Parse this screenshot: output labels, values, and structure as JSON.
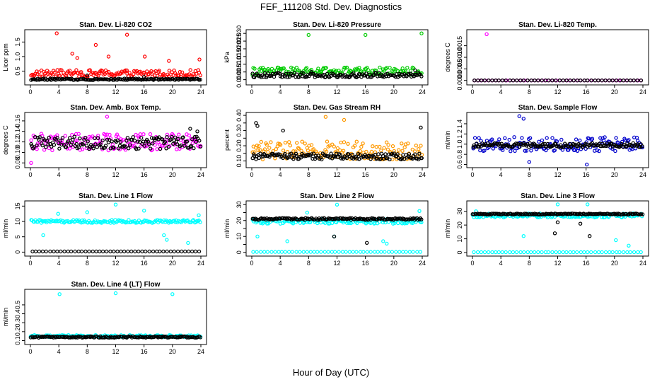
{
  "figure": {
    "title": "FEF_111208  Std. Dev. Diagnostics",
    "x_axis_title": "Hour of Day (UTC)"
  },
  "chart_data": [
    {
      "type": "scatter",
      "title": "Stan. Dev. Li-820 CO2",
      "ylabel": "Licor ppm",
      "xlim": [
        0,
        24
      ],
      "ylim": [
        0.1,
        1.85
      ],
      "xticks": [
        0,
        4,
        8,
        12,
        16,
        20,
        24
      ],
      "yticks": [
        0.5,
        1.0,
        1.5
      ],
      "ytick_labels": [
        "0.5",
        "1.0",
        "1.5"
      ],
      "color": "#ff0000",
      "series": [
        {
          "color": "#ff0000",
          "base": 0.42,
          "spread": 0.12,
          "outliers": [
            [
              3.7,
              1.8
            ],
            [
              13.6,
              1.75
            ],
            [
              9.2,
              1.4
            ],
            [
              5.9,
              1.1
            ],
            [
              16.1,
              1.0
            ],
            [
              6.6,
              0.95
            ],
            [
              11.0,
              1.0
            ],
            [
              23.8,
              0.9
            ],
            [
              19.5,
              0.85
            ]
          ]
        },
        {
          "color": "#000000",
          "base": 0.22,
          "spread": 0.025,
          "outliers": [
            [
              8.0,
              0.35
            ],
            [
              16.0,
              0.3
            ]
          ]
        }
      ]
    },
    {
      "type": "scatter",
      "title": "Stan. Dev. Li-820 Pressure",
      "ylabel": "kPa",
      "xlim": [
        0,
        24
      ],
      "ylim": [
        -0.002,
        0.031
      ],
      "xticks": [
        0,
        4,
        8,
        12,
        16,
        20,
        24
      ],
      "yticks": [
        0.0,
        0.005,
        0.01,
        0.015,
        0.02,
        0.025,
        0.03
      ],
      "ytick_labels": [
        "0.000",
        "0.005",
        "0.010",
        "0.015",
        "0.020",
        "0.025",
        "0.030"
      ],
      "color": "#00cc00",
      "series": [
        {
          "color": "#00cc00",
          "base": 0.0055,
          "spread": 0.0025,
          "outliers": [
            [
              8.0,
              0.029
            ],
            [
              16.0,
              0.029
            ],
            [
              23.9,
              0.03
            ]
          ]
        },
        {
          "color": "#000000",
          "base": 0.003,
          "spread": 0.0015,
          "outliers": [
            [
              23.0,
              0.006
            ],
            [
              8.4,
              0.005
            ]
          ]
        }
      ]
    },
    {
      "type": "scatter",
      "title": "Stan. Dev. Li-820 Temp.",
      "ylabel": "degrees C",
      "xlim": [
        0,
        24
      ],
      "ylim": [
        -0.0001,
        0.0021
      ],
      "xticks": [
        0,
        4,
        8,
        12,
        16,
        20,
        24
      ],
      "yticks": [
        0.0,
        0.0005,
        0.001,
        0.0015
      ],
      "ytick_labels": [
        "0.0000",
        "0.0005",
        "0.0010",
        "0.0015"
      ],
      "color": "#ff00ff",
      "series": [
        {
          "color": "#ff00ff",
          "base": 0.0,
          "spread": 0.0,
          "outliers": [
            [
              2.0,
              0.002
            ]
          ]
        },
        {
          "color": "#000000",
          "base": 0.0,
          "spread": 0.0,
          "outliers": []
        }
      ]
    },
    {
      "type": "scatter",
      "title": "Stan. Dev. Amb. Box Temp.",
      "ylabel": "degrees C",
      "xlim": [
        0,
        24
      ],
      "ylim": [
        0.075,
        0.172
      ],
      "xticks": [
        0,
        4,
        8,
        12,
        16,
        20,
        24
      ],
      "yticks": [
        0.08,
        0.1,
        0.12,
        0.14,
        0.16
      ],
      "ytick_labels": [
        "0.08",
        "0.10",
        "0.12",
        "0.14",
        "0.16"
      ],
      "color": "#ff00ff",
      "series": [
        {
          "color": "#ff00ff",
          "base": 0.12,
          "spread": 0.016,
          "outliers": [
            [
              0.1,
              0.08
            ],
            [
              10.8,
              0.168
            ]
          ]
        },
        {
          "color": "#000000",
          "base": 0.118,
          "spread": 0.012,
          "outliers": [
            [
              23.5,
              0.14
            ],
            [
              22.5,
              0.145
            ]
          ]
        }
      ]
    },
    {
      "type": "scatter",
      "title": "Stan. Dev. Gas Stream RH",
      "ylabel": "percent",
      "xlim": [
        0,
        24
      ],
      "ylim": [
        0.07,
        0.405
      ],
      "xticks": [
        0,
        4,
        8,
        12,
        16,
        20,
        24
      ],
      "yticks": [
        0.1,
        0.15,
        0.2,
        0.25,
        0.3,
        0.35,
        0.4
      ],
      "ytick_labels": [
        "0.10",
        "",
        "0.20",
        "",
        "0.30",
        "",
        "0.40"
      ],
      "color": "#ff9900",
      "series": [
        {
          "color": "#ff9900",
          "base": 0.17,
          "spread": 0.06,
          "outliers": [
            [
              10.4,
              0.39
            ],
            [
              13.0,
              0.37
            ]
          ]
        },
        {
          "color": "#000000",
          "base": 0.13,
          "spread": 0.02,
          "outliers": [
            [
              0.6,
              0.35
            ],
            [
              0.8,
              0.33
            ],
            [
              4.4,
              0.3
            ],
            [
              23.8,
              0.32
            ]
          ]
        }
      ]
    },
    {
      "type": "scatter",
      "title": "Stan. Dev. Sample Flow",
      "ylabel": "ml/min",
      "xlim": [
        0,
        24
      ],
      "ylim": [
        0.58,
        1.58
      ],
      "xticks": [
        0,
        4,
        8,
        12,
        16,
        20,
        24
      ],
      "yticks": [
        0.6,
        0.8,
        1.0,
        1.2,
        1.4
      ],
      "ytick_labels": [
        "0.6",
        "0.8",
        "1.0",
        "1.2",
        "1.4"
      ],
      "color": "#0000cc",
      "series": [
        {
          "color": "#0000cc",
          "base": 1.0,
          "spread": 0.14,
          "outliers": [
            [
              6.6,
              1.55
            ],
            [
              7.2,
              1.5
            ],
            [
              16.1,
              0.6
            ],
            [
              8.0,
              0.65
            ]
          ]
        },
        {
          "color": "#000000",
          "base": 0.98,
          "spread": 0.04,
          "outliers": []
        }
      ]
    },
    {
      "type": "scatter",
      "title": "Stan. Dev. Line 1 Flow",
      "ylabel": "ml/min",
      "xlim": [
        0,
        24
      ],
      "ylim": [
        -0.6,
        16
      ],
      "xticks": [
        0,
        4,
        8,
        12,
        16,
        20,
        24
      ],
      "yticks": [
        0,
        5,
        10,
        15
      ],
      "ytick_labels": [
        "0",
        "5",
        "10",
        "15"
      ],
      "color": "#00ffff",
      "series": [
        {
          "color": "#00ffff",
          "base": 10.0,
          "spread": 0.5,
          "outliers": [
            [
              12.0,
              15.5
            ],
            [
              3.9,
              12.5
            ],
            [
              8.0,
              13.0
            ],
            [
              16.0,
              13.5
            ],
            [
              23.7,
              12.0
            ],
            [
              18.8,
              5.5
            ],
            [
              19.2,
              4.0
            ],
            [
              22.2,
              3.0
            ],
            [
              1.8,
              5.5
            ]
          ]
        },
        {
          "color": "#000000",
          "base": 0.2,
          "spread": 0.0,
          "outliers": []
        }
      ]
    },
    {
      "type": "scatter",
      "title": "Stan. Dev. Line 2 Flow",
      "ylabel": "ml/min",
      "xlim": [
        0,
        24
      ],
      "ylim": [
        -1,
        31
      ],
      "xticks": [
        0,
        4,
        8,
        12,
        16,
        20,
        24
      ],
      "yticks": [
        0,
        5,
        10,
        15,
        20,
        25,
        30
      ],
      "ytick_labels": [
        "0",
        "",
        "10",
        "",
        "20",
        "",
        "30"
      ],
      "color": "#00ffff",
      "series": [
        {
          "color": "#00ffff",
          "base": 19.5,
          "spread": 1.5,
          "outliers": [
            [
              12.0,
              30.0
            ],
            [
              7.8,
              25.0
            ],
            [
              23.6,
              26.0
            ],
            [
              18.5,
              7.0
            ],
            [
              19.0,
              5.5
            ],
            [
              0.8,
              10.0
            ],
            [
              11.6,
              10.0
            ],
            [
              5.0,
              7.0
            ]
          ]
        },
        {
          "color": "#000000",
          "base": 21.0,
          "spread": 0.6,
          "outliers": [
            [
              11.6,
              10.0
            ],
            [
              16.2,
              6.0
            ]
          ]
        },
        {
          "color": "#00ffff",
          "base": 0.3,
          "spread": 0.0,
          "outliers": []
        }
      ]
    },
    {
      "type": "scatter",
      "title": "Stan. Dev. Line 3 Flow",
      "ylabel": "ml/min",
      "xlim": [
        0,
        24
      ],
      "ylim": [
        -1,
        36
      ],
      "xticks": [
        0,
        4,
        8,
        12,
        16,
        20,
        24
      ],
      "yticks": [
        0,
        10,
        20,
        30
      ],
      "ytick_labels": [
        "0",
        "10",
        "20",
        "30"
      ],
      "color": "#00ffff",
      "series": [
        {
          "color": "#00ffff",
          "base": 27.0,
          "spread": 1.5,
          "outliers": [
            [
              12.0,
              35.0
            ],
            [
              16.2,
              35.0
            ],
            [
              7.2,
              12.0
            ],
            [
              20.2,
              9.0
            ],
            [
              22.0,
              5.0
            ],
            [
              0.5,
              30.0
            ]
          ]
        },
        {
          "color": "#000000",
          "base": 28.0,
          "spread": 0.4,
          "outliers": [
            [
              11.6,
              14.0
            ],
            [
              16.5,
              12.0
            ],
            [
              15.2,
              21.0
            ],
            [
              12.0,
              22.0
            ]
          ]
        },
        {
          "color": "#00ffff",
          "base": 0.3,
          "spread": 0.0,
          "outliers": []
        }
      ]
    },
    {
      "type": "scatter",
      "title": "Stan. Dev. Line 4 (LT) Flow",
      "ylabel": "ml/min",
      "xlim": [
        0,
        24
      ],
      "ylim": [
        0.08,
        0.65
      ],
      "xticks": [
        0,
        4,
        8,
        12,
        16,
        20,
        24
      ],
      "yticks": [
        0.1,
        0.2,
        0.3,
        0.4,
        0.5
      ],
      "ytick_labels": [
        "0.1",
        "0.2",
        "0.3",
        "0.4",
        "0.5"
      ],
      "color": "#00ffff",
      "series": [
        {
          "color": "#00ffff",
          "base": 0.15,
          "spread": 0.012,
          "outliers": [
            [
              4.1,
              0.62
            ],
            [
              12.0,
              0.63
            ],
            [
              20.0,
              0.62
            ]
          ]
        },
        {
          "color": "#000000",
          "base": 0.14,
          "spread": 0.008,
          "outliers": []
        }
      ]
    }
  ]
}
